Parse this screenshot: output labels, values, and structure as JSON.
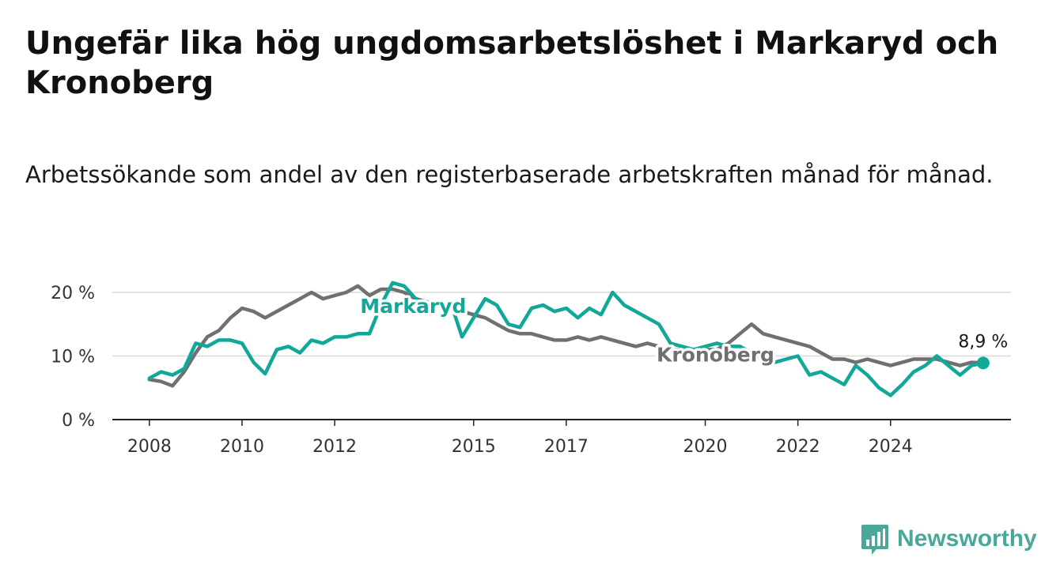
{
  "title": "Ungefär lika hög ungdomsarbetslöshet i Markaryd och Kronoberg",
  "subtitle": "Arbetssökande som andel av den registerbaserade arbetskraften månad för månad.",
  "brand": {
    "name": "Newsworthy",
    "color": "#4aa89a",
    "icon": "bar-chart-speech-bubble-icon"
  },
  "chart_data": {
    "type": "line",
    "x_ticks": [
      "2008",
      "2010",
      "2012",
      "2015",
      "2017",
      "2020",
      "2022",
      "2024"
    ],
    "y_ticks": [
      "0 %",
      "10 %",
      "20 %"
    ],
    "ylim": [
      0,
      20
    ],
    "grid": true,
    "end_label": "8,9 %",
    "series": [
      {
        "name": "Markaryd",
        "color": "#11a89a",
        "points": [
          [
            2008.0,
            6.5
          ],
          [
            2008.25,
            7.5
          ],
          [
            2008.5,
            7.0
          ],
          [
            2008.75,
            8.0
          ],
          [
            2009.0,
            12.0
          ],
          [
            2009.25,
            11.5
          ],
          [
            2009.5,
            12.5
          ],
          [
            2009.75,
            12.5
          ],
          [
            2010.0,
            12.0
          ],
          [
            2010.25,
            9.0
          ],
          [
            2010.5,
            7.2
          ],
          [
            2010.75,
            11.0
          ],
          [
            2011.0,
            11.5
          ],
          [
            2011.25,
            10.5
          ],
          [
            2011.5,
            12.5
          ],
          [
            2011.75,
            12.0
          ],
          [
            2012.0,
            13.0
          ],
          [
            2012.25,
            13.0
          ],
          [
            2012.5,
            13.5
          ],
          [
            2012.75,
            13.5
          ],
          [
            2013.0,
            18.0
          ],
          [
            2013.25,
            21.5
          ],
          [
            2013.5,
            21.0
          ],
          [
            2013.75,
            19.0
          ],
          [
            2014.0,
            17.0
          ],
          [
            2014.25,
            18.0
          ],
          [
            2014.5,
            18.5
          ],
          [
            2014.75,
            13.0
          ],
          [
            2015.0,
            16.0
          ],
          [
            2015.25,
            19.0
          ],
          [
            2015.5,
            18.0
          ],
          [
            2015.75,
            15.0
          ],
          [
            2016.0,
            14.5
          ],
          [
            2016.25,
            17.5
          ],
          [
            2016.5,
            18.0
          ],
          [
            2016.75,
            17.0
          ],
          [
            2017.0,
            17.5
          ],
          [
            2017.25,
            16.0
          ],
          [
            2017.5,
            17.5
          ],
          [
            2017.75,
            16.5
          ],
          [
            2018.0,
            20.0
          ],
          [
            2018.25,
            18.0
          ],
          [
            2018.5,
            17.0
          ],
          [
            2018.75,
            16.0
          ],
          [
            2019.0,
            15.0
          ],
          [
            2019.25,
            12.0
          ],
          [
            2019.5,
            11.5
          ],
          [
            2019.75,
            11.0
          ],
          [
            2020.0,
            11.5
          ],
          [
            2020.25,
            12.0
          ],
          [
            2020.5,
            11.5
          ],
          [
            2020.75,
            11.5
          ],
          [
            2021.0,
            10.5
          ],
          [
            2021.25,
            9.5
          ],
          [
            2021.5,
            9.0
          ],
          [
            2021.75,
            9.5
          ],
          [
            2022.0,
            10.0
          ],
          [
            2022.25,
            7.0
          ],
          [
            2022.5,
            7.5
          ],
          [
            2022.75,
            6.5
          ],
          [
            2023.0,
            5.5
          ],
          [
            2023.25,
            8.5
          ],
          [
            2023.5,
            7.0
          ],
          [
            2023.75,
            5.0
          ],
          [
            2024.0,
            3.8
          ],
          [
            2024.25,
            5.5
          ],
          [
            2024.5,
            7.5
          ],
          [
            2024.75,
            8.5
          ],
          [
            2025.0,
            10.0
          ],
          [
            2025.25,
            8.5
          ],
          [
            2025.5,
            7.0
          ],
          [
            2025.75,
            8.5
          ],
          [
            2026.0,
            8.9
          ]
        ]
      },
      {
        "name": "Kronoberg",
        "color": "#707070",
        "points": [
          [
            2008.0,
            6.3
          ],
          [
            2008.25,
            6.0
          ],
          [
            2008.5,
            5.3
          ],
          [
            2008.75,
            7.5
          ],
          [
            2009.0,
            10.5
          ],
          [
            2009.25,
            13.0
          ],
          [
            2009.5,
            14.0
          ],
          [
            2009.75,
            16.0
          ],
          [
            2010.0,
            17.5
          ],
          [
            2010.25,
            17.0
          ],
          [
            2010.5,
            16.0
          ],
          [
            2010.75,
            17.0
          ],
          [
            2011.0,
            18.0
          ],
          [
            2011.25,
            19.0
          ],
          [
            2011.5,
            20.0
          ],
          [
            2011.75,
            19.0
          ],
          [
            2012.0,
            19.5
          ],
          [
            2012.25,
            20.0
          ],
          [
            2012.5,
            21.0
          ],
          [
            2012.75,
            19.5
          ],
          [
            2013.0,
            20.5
          ],
          [
            2013.25,
            20.5
          ],
          [
            2013.5,
            20.0
          ],
          [
            2013.75,
            19.0
          ],
          [
            2014.0,
            18.5
          ],
          [
            2014.25,
            18.0
          ],
          [
            2014.5,
            17.5
          ],
          [
            2014.75,
            17.0
          ],
          [
            2015.0,
            16.5
          ],
          [
            2015.25,
            16.0
          ],
          [
            2015.5,
            15.0
          ],
          [
            2015.75,
            14.0
          ],
          [
            2016.0,
            13.5
          ],
          [
            2016.25,
            13.5
          ],
          [
            2016.5,
            13.0
          ],
          [
            2016.75,
            12.5
          ],
          [
            2017.0,
            12.5
          ],
          [
            2017.25,
            13.0
          ],
          [
            2017.5,
            12.5
          ],
          [
            2017.75,
            13.0
          ],
          [
            2018.0,
            12.5
          ],
          [
            2018.25,
            12.0
          ],
          [
            2018.5,
            11.5
          ],
          [
            2018.75,
            12.0
          ],
          [
            2019.0,
            11.5
          ],
          [
            2019.25,
            11.0
          ],
          [
            2019.5,
            11.0
          ],
          [
            2019.75,
            10.5
          ],
          [
            2020.0,
            11.0
          ],
          [
            2020.25,
            11.0
          ],
          [
            2020.5,
            12.0
          ],
          [
            2020.75,
            13.5
          ],
          [
            2021.0,
            15.0
          ],
          [
            2021.25,
            13.5
          ],
          [
            2021.5,
            13.0
          ],
          [
            2021.75,
            12.5
          ],
          [
            2022.0,
            12.0
          ],
          [
            2022.25,
            11.5
          ],
          [
            2022.5,
            10.5
          ],
          [
            2022.75,
            9.5
          ],
          [
            2023.0,
            9.5
          ],
          [
            2023.25,
            9.0
          ],
          [
            2023.5,
            9.5
          ],
          [
            2023.75,
            9.0
          ],
          [
            2024.0,
            8.5
          ],
          [
            2024.25,
            9.0
          ],
          [
            2024.5,
            9.5
          ],
          [
            2024.75,
            9.5
          ],
          [
            2025.0,
            9.5
          ],
          [
            2025.25,
            9.0
          ],
          [
            2025.5,
            8.5
          ],
          [
            2025.75,
            9.0
          ],
          [
            2026.0,
            8.9
          ]
        ]
      }
    ]
  }
}
